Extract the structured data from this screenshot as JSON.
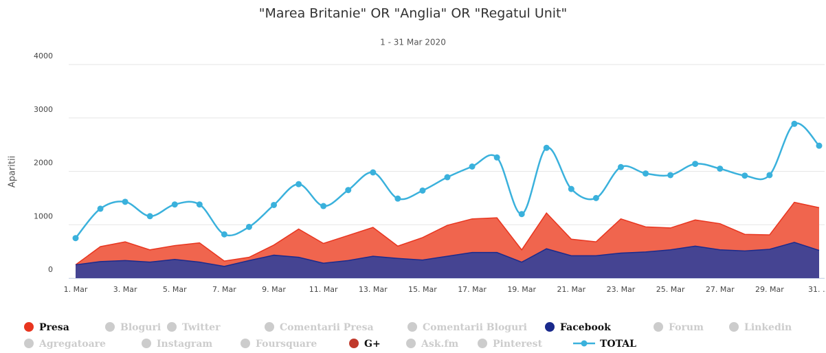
{
  "chart_data": {
    "type": "area",
    "title": "\"Marea Britanie\" OR \"Anglia\" OR \"Regatul Unit\"",
    "subtitle": "1 - 31 Mar 2020",
    "y_axis_label": "Aparitii",
    "categories": [
      "1. Mar",
      null,
      "3. Mar",
      null,
      "5. Mar",
      null,
      "7. Mar",
      null,
      "9. Mar",
      null,
      "11. Mar",
      null,
      "13. Mar",
      null,
      "15. Mar",
      null,
      "17. Mar",
      null,
      "19. Mar",
      null,
      "21. Mar",
      null,
      "23. Mar",
      null,
      "25. Mar",
      null,
      "27. Mar",
      null,
      "29. Mar",
      null,
      "31. …"
    ],
    "ylim": [
      0,
      4000
    ],
    "yticks": [
      0,
      1000,
      2000,
      3000,
      4000
    ],
    "grid": true,
    "stacked": true,
    "series": [
      {
        "name": "Presa",
        "color": "#e8351f",
        "visible": true,
        "type": "area",
        "values": [
          0,
          280,
          350,
          230,
          260,
          360,
          100,
          60,
          190,
          530,
          370,
          470,
          540,
          230,
          420,
          580,
          630,
          650,
          230,
          670,
          310,
          260,
          640,
          470,
          410,
          490,
          490,
          310,
          270,
          750,
          800
        ]
      },
      {
        "name": "Bloguri",
        "color": "#cccccc",
        "visible": false
      },
      {
        "name": "Twitter",
        "color": "#cccccc",
        "visible": false
      },
      {
        "name": "Comentarii Presa",
        "color": "#cccccc",
        "visible": false
      },
      {
        "name": "Comentarii Bloguri",
        "color": "#cccccc",
        "visible": false
      },
      {
        "name": "Facebook",
        "color": "#1a2a8c",
        "visible": true,
        "type": "area",
        "values": [
          250,
          310,
          330,
          300,
          350,
          300,
          220,
          330,
          430,
          390,
          280,
          330,
          410,
          370,
          340,
          410,
          480,
          480,
          300,
          550,
          420,
          420,
          470,
          490,
          530,
          600,
          530,
          510,
          540,
          670,
          520
        ]
      },
      {
        "name": "Forum",
        "color": "#cccccc",
        "visible": false
      },
      {
        "name": "Linkedin",
        "color": "#cccccc",
        "visible": false
      },
      {
        "name": "Agregatoare",
        "color": "#cccccc",
        "visible": false
      },
      {
        "name": "Instagram",
        "color": "#cccccc",
        "visible": false
      },
      {
        "name": "Foursquare",
        "color": "#cccccc",
        "visible": false
      },
      {
        "name": "G+",
        "color": "#c0392b",
        "visible": true
      },
      {
        "name": "Ask.fm",
        "color": "#cccccc",
        "visible": false
      },
      {
        "name": "Pinterest",
        "color": "#cccccc",
        "visible": false
      },
      {
        "name": "TOTAL",
        "color": "#3ab1dc",
        "visible": true,
        "type": "spline",
        "values": [
          750,
          1300,
          1430,
          1160,
          1380,
          1380,
          820,
          960,
          1370,
          1760,
          1350,
          1650,
          1980,
          1490,
          1640,
          1890,
          2090,
          2260,
          1200,
          2440,
          1670,
          1500,
          2080,
          1960,
          1930,
          2140,
          2050,
          1920,
          1930,
          2890,
          2480
        ]
      }
    ]
  }
}
